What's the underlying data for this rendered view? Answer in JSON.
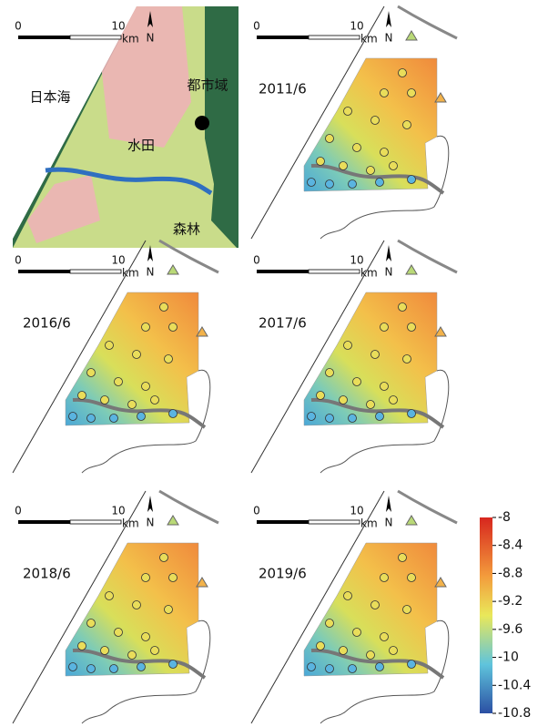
{
  "panels": [
    {
      "scale": {
        "zero": "0",
        "ten": "10",
        "unit": "km"
      },
      "north": "N",
      "labels": [
        "日本海",
        "都市域",
        "水田",
        "森林"
      ]
    },
    {
      "scale": {
        "zero": "0",
        "ten": "10",
        "unit": "km"
      },
      "north": "N",
      "date": "2011/6"
    },
    {
      "scale": {
        "zero": "0",
        "ten": "10",
        "unit": "km"
      },
      "north": "N",
      "date": "2016/6"
    },
    {
      "scale": {
        "zero": "0",
        "ten": "10",
        "unit": "km"
      },
      "north": "N",
      "date": "2017/6"
    },
    {
      "scale": {
        "zero": "0",
        "ten": "10",
        "unit": "km"
      },
      "north": "N",
      "date": "2018/6"
    },
    {
      "scale": {
        "zero": "0",
        "ten": "10",
        "unit": "km"
      },
      "north": "N",
      "date": "2019/6"
    }
  ],
  "colorbar": {
    "lim": [
      -8,
      -10.8
    ],
    "ticks": [
      -8,
      -8.4,
      -8.8,
      -9.2,
      -9.6,
      -10,
      -10.4,
      -10.8
    ]
  }
}
